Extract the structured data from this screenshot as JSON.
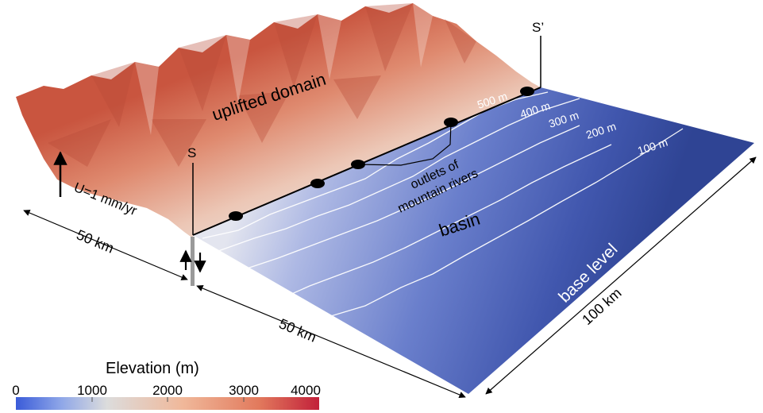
{
  "labels": {
    "uplifted_domain": "uplifted domain",
    "basin": "basin",
    "base_level": "base level",
    "outlets_line1": "outlets of",
    "outlets_line2": "mountain rivers",
    "uplift_rate": "U=1 mm/yr",
    "section_start": "S",
    "section_end": "S’"
  },
  "dimensions": {
    "width_front": "50 km",
    "width_basin": "50 km",
    "length": "100 km"
  },
  "contours": [
    "500 m",
    "400 m",
    "300 m",
    "200 m",
    "100 m"
  ],
  "colorbar": {
    "title": "Elevation (m)",
    "ticks": [
      "0",
      "1000",
      "2000",
      "3000",
      "4000"
    ],
    "colors": [
      "#3a5bd9",
      "#8fa7e8",
      "#dcdcdc",
      "#f0b89a",
      "#e98060",
      "#c8233a"
    ]
  },
  "colors": {
    "mountain_dark": "#c85a45",
    "mountain_mid": "#e79a80",
    "mountain_light": "#e8ddd6",
    "basin_near": "#d7dcee",
    "basin_mid": "#7285cf",
    "basin_far": "#33489b"
  }
}
